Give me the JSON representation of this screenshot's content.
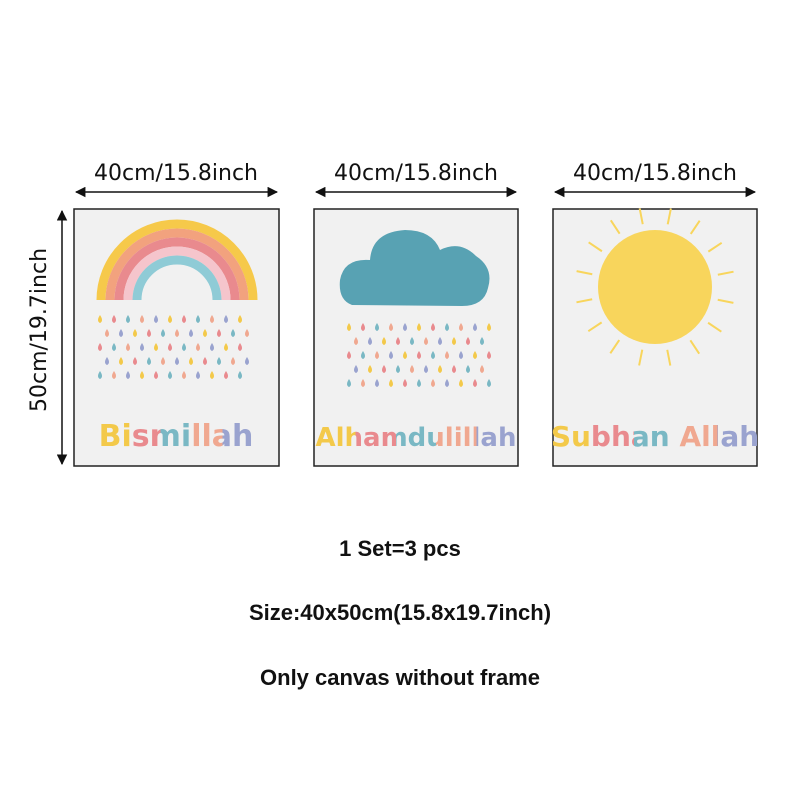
{
  "panels": [
    {
      "width_label": "40cm/15.8inch",
      "word": "Bismillah"
    },
    {
      "width_label": "40cm/15.8inch",
      "word": "Alhamdulillah"
    },
    {
      "width_label": "40cm/15.8inch",
      "word": "Subhan Allah"
    }
  ],
  "height_label": "50cm/19.7inch",
  "info": [
    "1 Set=3 pcs",
    "Size:40x50cm(15.8x19.7inch)",
    "Only canvas without frame"
  ]
}
